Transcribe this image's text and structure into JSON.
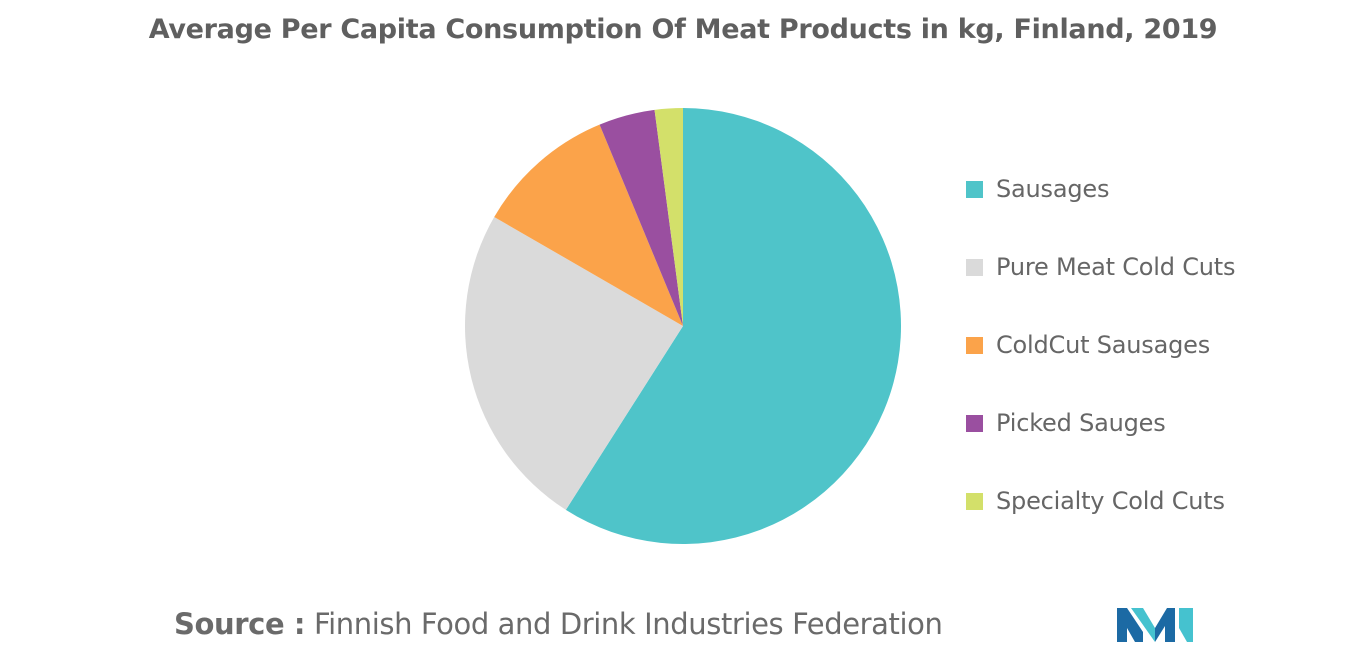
{
  "chart_data": {
    "type": "pie",
    "title": "Average Per Capita Consumption Of Meat Products in kg, Finland, 2019",
    "categories": [
      "Sausages",
      "Pure Meat Cold Cuts",
      "ColdCut Sausages",
      "Picked Sauges",
      "Specialty Cold Cuts"
    ],
    "values": [
      59.5,
      24.5,
      10.5,
      4.2,
      2.1
    ],
    "colors": [
      "#4fc4c9",
      "#dadada",
      "#fba34a",
      "#9a4fa0",
      "#d3e06a"
    ],
    "legend_position": "right"
  },
  "source": {
    "prefix": "Source :",
    "text": "Finnish Food and Drink Industries Federation"
  },
  "logo": {
    "icon": "mordor-intelligence-logo-icon",
    "colors": [
      "#1c6aa4",
      "#45c2cf"
    ]
  }
}
